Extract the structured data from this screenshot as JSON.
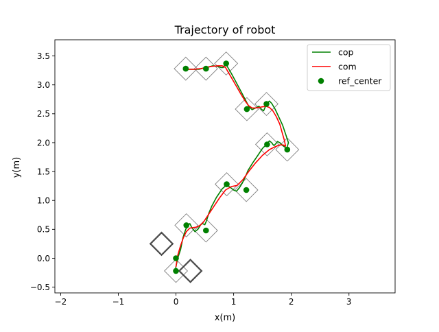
{
  "chart_data": {
    "type": "line",
    "title": "Trajectory of robot",
    "xlabel": "x(m)",
    "ylabel": "y(m)",
    "xlim": [
      -2.1,
      3.8
    ],
    "ylim": [
      -0.6,
      3.78
    ],
    "x_ticks": [
      -2,
      -1,
      0,
      1,
      2,
      3
    ],
    "x_tick_labels": [
      "−2",
      "−1",
      "0",
      "1",
      "2",
      "3"
    ],
    "y_ticks": [
      -0.5,
      0.0,
      0.5,
      1.0,
      1.5,
      2.0,
      2.5,
      3.0,
      3.5
    ],
    "y_tick_labels": [
      "−0.5",
      "0.0",
      "0.5",
      "1.0",
      "1.5",
      "2.0",
      "2.5",
      "3.0",
      "3.5"
    ],
    "grid": false,
    "legend_position": "top-right",
    "series": [
      {
        "name": "cop",
        "kind": "line",
        "color": "#008000",
        "x": [
          -0.02,
          0.0,
          0.03,
          0.08,
          0.12,
          0.17,
          0.22,
          0.24,
          0.28,
          0.33,
          0.38,
          0.43,
          0.46,
          0.5,
          0.53,
          0.57,
          0.62,
          0.7,
          0.8,
          0.88,
          0.95,
          1.0,
          1.05,
          1.1,
          1.15,
          1.2,
          1.25,
          1.33,
          1.42,
          1.5,
          1.58,
          1.62,
          1.66,
          1.68,
          1.7,
          1.73,
          1.76,
          1.8,
          1.85,
          1.92,
          1.95,
          1.9,
          1.85,
          1.78,
          1.72,
          1.66,
          1.62,
          1.58,
          1.55,
          1.52,
          1.48,
          1.44,
          1.38,
          1.32,
          1.26,
          1.2,
          1.12,
          1.04,
          0.96,
          0.9,
          0.86,
          0.84,
          0.82,
          0.78,
          0.72,
          0.64,
          0.56,
          0.48,
          0.4,
          0.32,
          0.24,
          0.18
        ],
        "y": [
          -0.25,
          -0.15,
          0.0,
          0.15,
          0.35,
          0.5,
          0.58,
          0.6,
          0.52,
          0.46,
          0.5,
          0.58,
          0.6,
          0.58,
          0.65,
          0.78,
          0.9,
          1.05,
          1.2,
          1.27,
          1.22,
          1.18,
          1.16,
          1.22,
          1.3,
          1.4,
          1.52,
          1.65,
          1.78,
          1.9,
          1.98,
          2.03,
          2.0,
          1.97,
          1.95,
          1.98,
          2.02,
          2.0,
          1.95,
          1.9,
          2.0,
          2.15,
          2.3,
          2.45,
          2.58,
          2.68,
          2.72,
          2.68,
          2.62,
          2.55,
          2.58,
          2.63,
          2.6,
          2.57,
          2.63,
          2.75,
          2.9,
          3.05,
          3.2,
          3.3,
          3.37,
          3.34,
          3.3,
          3.3,
          3.32,
          3.33,
          3.31,
          3.29,
          3.27,
          3.27,
          3.27,
          3.27
        ]
      },
      {
        "name": "com",
        "kind": "line",
        "color": "#ff0000",
        "x": [
          0.0,
          0.03,
          0.08,
          0.13,
          0.18,
          0.24,
          0.3,
          0.36,
          0.42,
          0.48,
          0.56,
          0.66,
          0.76,
          0.86,
          0.96,
          1.06,
          1.16,
          1.26,
          1.38,
          1.5,
          1.62,
          1.72,
          1.8,
          1.86,
          1.9,
          1.88,
          1.84,
          1.8,
          1.74,
          1.68,
          1.62,
          1.56,
          1.5,
          1.44,
          1.38,
          1.32,
          1.26,
          1.2,
          1.12,
          1.04,
          0.96,
          0.9,
          0.86,
          0.8,
          0.72,
          0.62,
          0.52,
          0.42,
          0.32,
          0.22,
          0.16
        ],
        "y": [
          -0.15,
          0.05,
          0.22,
          0.36,
          0.46,
          0.52,
          0.53,
          0.54,
          0.57,
          0.63,
          0.75,
          0.9,
          1.05,
          1.18,
          1.24,
          1.26,
          1.36,
          1.5,
          1.65,
          1.78,
          1.88,
          1.93,
          1.96,
          1.96,
          1.94,
          2.04,
          2.18,
          2.32,
          2.45,
          2.55,
          2.61,
          2.63,
          2.62,
          2.61,
          2.6,
          2.6,
          2.64,
          2.72,
          2.85,
          2.99,
          3.13,
          3.23,
          3.3,
          3.33,
          3.33,
          3.32,
          3.3,
          3.28,
          3.27,
          3.27,
          3.27
        ]
      },
      {
        "name": "ref_center",
        "kind": "scatter",
        "color": "#008000",
        "x": [
          0.0,
          0.0,
          0.18,
          0.52,
          0.88,
          1.22,
          1.58,
          1.93,
          1.57,
          1.23,
          0.87,
          0.52,
          0.17
        ],
        "y": [
          -0.22,
          0.0,
          0.57,
          0.48,
          1.28,
          1.18,
          1.97,
          1.88,
          2.67,
          2.58,
          3.37,
          3.28,
          3.28
        ]
      }
    ],
    "footprints": {
      "color": "#808080",
      "half_diagonal": 0.2,
      "x": [
        0.0,
        0.18,
        0.52,
        0.88,
        1.22,
        1.58,
        1.93,
        1.57,
        1.23,
        0.87,
        0.52,
        0.17
      ],
      "y": [
        -0.22,
        0.57,
        0.48,
        1.28,
        1.18,
        1.97,
        1.88,
        2.67,
        2.58,
        3.37,
        3.28,
        3.28
      ]
    },
    "initial_feet": {
      "color": "#404040",
      "half_diagonal": 0.2,
      "x": [
        -0.25,
        0.25
      ],
      "y": [
        0.25,
        -0.22
      ]
    }
  }
}
